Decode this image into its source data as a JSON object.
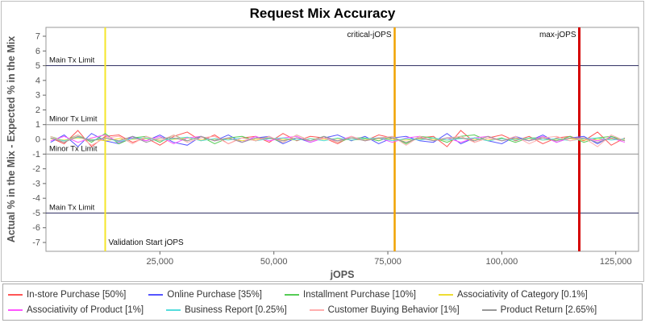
{
  "title": "Request Mix Accuracy",
  "axes": {
    "x_label": "jOPS",
    "y_label": "Actual % in the Mix - Expected % in the Mix",
    "y_ticks": [
      7,
      6,
      5,
      4,
      3,
      2,
      1,
      0,
      -1,
      -2,
      -3,
      -4,
      -5,
      -6,
      -7
    ],
    "x_ticks": [
      {
        "v": 25000,
        "label": "25,000"
      },
      {
        "v": 50000,
        "label": "50,000"
      },
      {
        "v": 75000,
        "label": "75,000"
      },
      {
        "v": 100000,
        "label": "100,000"
      },
      {
        "v": 125000,
        "label": "125,000"
      }
    ]
  },
  "chart_data": {
    "type": "line",
    "title": "Request Mix Accuracy",
    "xlabel": "jOPS",
    "ylabel": "Actual % in the Mix - Expected % in the Mix",
    "xlim": [
      0,
      130000
    ],
    "ylim": [
      -7.6,
      7.6
    ],
    "grid": false,
    "legend_position": "bottom",
    "x": [
      1000,
      4000,
      7000,
      10000,
      13000,
      16000,
      19000,
      22000,
      25000,
      28000,
      31000,
      34000,
      37000,
      40000,
      43000,
      46000,
      49000,
      52000,
      55000,
      58000,
      61000,
      64000,
      67000,
      70000,
      73000,
      76000,
      79000,
      82000,
      85000,
      88000,
      91000,
      94000,
      97000,
      100000,
      103000,
      106000,
      109000,
      112000,
      115000,
      118000,
      121000,
      124000,
      127000
    ],
    "series": [
      {
        "name": "In-store Purchase [50%]",
        "color": "#FF5555",
        "values": [
          0.1,
          -0.3,
          0.6,
          -0.5,
          0.2,
          0.3,
          -0.2,
          0.1,
          -0.4,
          0.2,
          0.5,
          -0.1,
          0.3,
          -0.3,
          0.1,
          0.2,
          -0.2,
          0.4,
          -0.1,
          0.2,
          0.1,
          -0.3,
          0.2,
          -0.1,
          0.3,
          0.1,
          -0.2,
          0.1,
          0.2,
          -0.5,
          0.6,
          -0.2,
          0.1,
          0.3,
          -0.1,
          0.2,
          -0.3,
          0.1,
          0.2,
          -0.1,
          0.5,
          -0.4,
          0.1
        ]
      },
      {
        "name": "Online Purchase [35%]",
        "color": "#5555FF",
        "values": [
          -0.2,
          0.3,
          -0.5,
          0.4,
          -0.1,
          -0.3,
          0.2,
          -0.1,
          0.3,
          -0.2,
          -0.4,
          0.2,
          -0.1,
          0.3,
          -0.2,
          0.1,
          0.2,
          -0.3,
          0.1,
          -0.2,
          0.1,
          0.3,
          -0.1,
          0.2,
          -0.3,
          0.1,
          0.2,
          -0.1,
          -0.2,
          0.4,
          -0.3,
          0.1,
          -0.1,
          -0.3,
          0.2,
          -0.1,
          0.3,
          -0.2,
          0.1,
          0.2,
          -0.3,
          0.2,
          -0.1
        ]
      },
      {
        "name": "Installment Purchase [10%]",
        "color": "#55CC55",
        "values": [
          0.2,
          -0.1,
          0.3,
          -0.2,
          0.4,
          -0.3,
          0.1,
          0.2,
          -0.2,
          0.3,
          -0.1,
          0.2,
          -0.3,
          0.1,
          0.2,
          -0.1,
          0.1,
          -0.2,
          0.3,
          -0.1,
          0.2,
          -0.2,
          0.1,
          0.1,
          -0.1,
          0.2,
          -0.3,
          0.2,
          0.1,
          -0.2,
          0.2,
          0.3,
          -0.1,
          0.1,
          -0.2,
          0.1,
          0.1,
          -0.1,
          0.2,
          -0.2,
          0.1,
          0.2,
          -0.1
        ]
      },
      {
        "name": "Associativity of Category [0.1%]",
        "color": "#EEDD33",
        "values": [
          0.05,
          -0.05,
          0.1,
          0,
          -0.1,
          0.05,
          0,
          0.05,
          -0.05,
          0,
          0.1,
          -0.05,
          0,
          0.05,
          -0.1,
          0,
          0.05,
          0,
          -0.05,
          0.05,
          0,
          0.05,
          -0.05,
          0,
          0.05,
          0,
          -0.05,
          0.05,
          0,
          -0.05,
          0.1,
          0,
          -0.05,
          0.05,
          0,
          0.05,
          -0.05,
          0,
          0.05,
          -0.05,
          0,
          0.05,
          0
        ]
      },
      {
        "name": "Associativity of Product [1%]",
        "color": "#FF55FF",
        "values": [
          -0.1,
          0.2,
          -0.2,
          0.1,
          0.3,
          -0.2,
          0.1,
          -0.1,
          0.2,
          -0.3,
          0.1,
          0.2,
          -0.1,
          0.1,
          -0.2,
          0.2,
          -0.1,
          0.1,
          0.2,
          -0.2,
          0.1,
          -0.1,
          0.2,
          -0.1,
          0.1,
          -0.2,
          0.1,
          0.2,
          -0.1,
          0.1,
          -0.2,
          0.1,
          0.2,
          -0.1,
          0.1,
          -0.1,
          0.2,
          -0.2,
          0.1,
          0.1,
          -0.1,
          0.1,
          -0.2
        ]
      },
      {
        "name": "Business Report [0.25%]",
        "color": "#55DDDD",
        "values": [
          0.1,
          -0.1,
          0.15,
          -0.05,
          0.1,
          -0.15,
          0.05,
          0.1,
          -0.1,
          0.05,
          0.15,
          -0.1,
          0.05,
          -0.05,
          0.1,
          -0.1,
          0.05,
          0.1,
          -0.05,
          0.05,
          -0.1,
          0.1,
          -0.05,
          0.05,
          0.1,
          -0.1,
          0.05,
          -0.05,
          0.1,
          -0.05,
          0.05,
          0.1,
          -0.1,
          0.05,
          -0.05,
          0.1,
          -0.05,
          0.05,
          -0.1,
          0.05,
          0.1,
          -0.05,
          0.05
        ]
      },
      {
        "name": "Customer Buying Behavior [1%]",
        "color": "#FFAFAF",
        "values": [
          0.2,
          -0.2,
          0.3,
          -0.4,
          0.1,
          0.2,
          -0.3,
          0.2,
          -0.1,
          0.3,
          -0.2,
          0.1,
          0.2,
          -0.3,
          0.1,
          -0.1,
          0.2,
          -0.2,
          0.3,
          -0.1,
          0.1,
          -0.2,
          0.2,
          -0.1,
          0.1,
          0.2,
          -0.4,
          0.2,
          -0.1,
          0.1,
          0.2,
          -0.2,
          0.1,
          -0.1,
          0.2,
          -0.3,
          0.1,
          0.2,
          -0.1,
          0.1,
          -0.5,
          0.3,
          -0.1
        ]
      },
      {
        "name": "Product Return [2.65%]",
        "color": "#999999",
        "values": [
          0.1,
          -0.2,
          0.2,
          -0.1,
          0.1,
          -0.1,
          0.2,
          -0.2,
          0.1,
          0.1,
          -0.1,
          0.2,
          -0.1,
          0.1,
          -0.2,
          0.1,
          0.1,
          -0.1,
          0.1,
          -0.1,
          0.2,
          -0.1,
          0.1,
          -0.1,
          0.1,
          0.1,
          -0.2,
          0.1,
          -0.1,
          0.1,
          0.1,
          -0.1,
          0.2,
          -0.1,
          0.1,
          -0.1,
          0.1,
          -0.1,
          0.1,
          0.1,
          -0.2,
          0.1,
          -0.1
        ]
      }
    ],
    "annotations": {
      "h_lines": [
        {
          "name": "main-tx-limit-upper",
          "label": "Main Tx Limit",
          "y": 5,
          "color": "#333366"
        },
        {
          "name": "minor-tx-limit-upper",
          "label": "Minor Tx Limit",
          "y": 1,
          "color": "#909090"
        },
        {
          "name": "minor-tx-limit-lower",
          "label": "Minor Tx Limit",
          "y": -1,
          "color": "#909090"
        },
        {
          "name": "main-tx-limit-lower",
          "label": "Main Tx Limit",
          "y": -5,
          "color": "#333366"
        }
      ],
      "v_lines": [
        {
          "name": "validation-start",
          "label": "Validation Start jOPS",
          "x": 13000,
          "color": "#F5E62A",
          "width": 2,
          "label_side": "right",
          "label_pos": "bottom"
        },
        {
          "name": "critical-jops",
          "label": "critical-jOPS",
          "x": 76500,
          "color": "#F0A202",
          "width": 2.5,
          "label_side": "left",
          "label_pos": "top"
        },
        {
          "name": "max-jops",
          "label": "max-jOPS",
          "x": 117000,
          "color": "#D40000",
          "width": 3,
          "label_side": "left",
          "label_pos": "top"
        }
      ]
    }
  }
}
